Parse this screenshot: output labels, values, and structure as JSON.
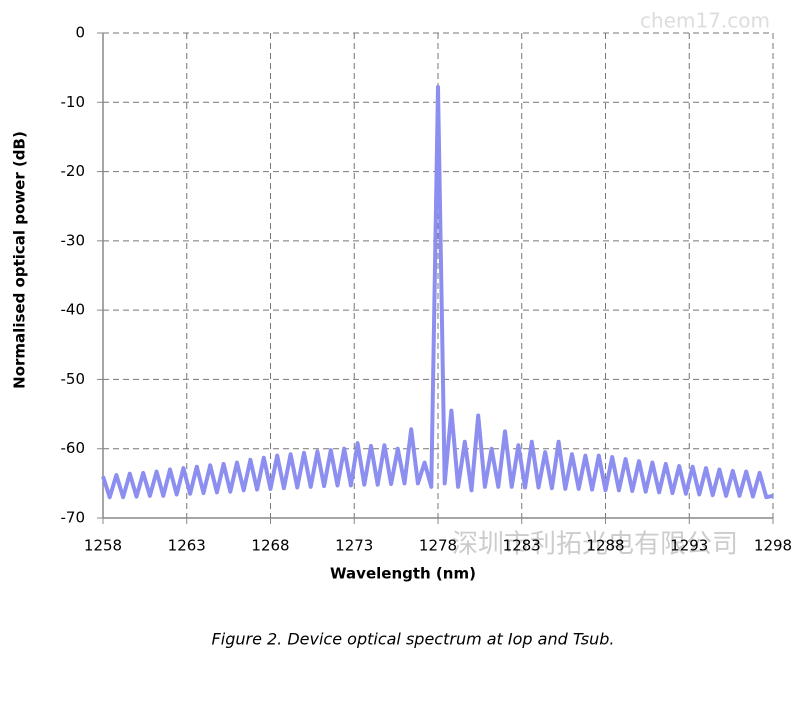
{
  "chart_data": {
    "type": "line",
    "x_label": "Wavelength (nm)",
    "y_label": "Normalised optical power  (dB)",
    "caption": "Figure 2. Device optical spectrum at Iop and Tsub.",
    "watermark": "chem17.com",
    "watermark_company": "深圳市利拓光电有限公司",
    "color": "#8c8ff0",
    "grid": true,
    "xlim": [
      1258,
      1298
    ],
    "ylim": [
      -70,
      0
    ],
    "xticks": [
      1258,
      1263,
      1268,
      1273,
      1278,
      1283,
      1288,
      1293,
      1298
    ],
    "yticks": [
      0,
      -10,
      -20,
      -30,
      -40,
      -50,
      -60,
      -70
    ],
    "x": [
      1258,
      1258.4,
      1258.8,
      1259.2,
      1259.6,
      1260,
      1260.4,
      1260.8,
      1261.2,
      1261.6,
      1262,
      1262.4,
      1262.8,
      1263.2,
      1263.6,
      1264,
      1264.4,
      1264.8,
      1265.2,
      1265.6,
      1266,
      1266.4,
      1266.8,
      1267.2,
      1267.6,
      1268,
      1268.4,
      1268.8,
      1269.2,
      1269.6,
      1270,
      1270.4,
      1270.8,
      1271.2,
      1271.6,
      1272,
      1272.4,
      1272.8,
      1273.2,
      1273.6,
      1274,
      1274.4,
      1274.8,
      1275.2,
      1275.6,
      1276,
      1276.4,
      1276.8,
      1277.2,
      1277.6,
      1278,
      1278.4,
      1278.8,
      1279.2,
      1279.6,
      1280,
      1280.4,
      1280.8,
      1281.2,
      1281.6,
      1282,
      1282.4,
      1282.8,
      1283.2,
      1283.6,
      1284,
      1284.4,
      1284.8,
      1285.2,
      1285.6,
      1286,
      1286.4,
      1286.8,
      1287.2,
      1287.6,
      1288,
      1288.4,
      1288.8,
      1289.2,
      1289.6,
      1290,
      1290.4,
      1290.8,
      1291.2,
      1291.6,
      1292,
      1292.4,
      1292.8,
      1293.2,
      1293.6,
      1294,
      1294.4,
      1294.8,
      1295.2,
      1295.6,
      1296,
      1296.4,
      1296.8,
      1297.2,
      1297.6,
      1298
    ],
    "values": [
      -64,
      -67,
      -63.8,
      -67,
      -63.6,
      -66.9,
      -63.5,
      -66.8,
      -63.3,
      -66.8,
      -63,
      -66.6,
      -62.8,
      -66.5,
      -62.6,
      -66.4,
      -62.4,
      -66.3,
      -62.2,
      -66.2,
      -62,
      -66,
      -61.6,
      -65.9,
      -61.3,
      -65.8,
      -61,
      -65.7,
      -60.8,
      -65.6,
      -60.6,
      -65.5,
      -60.4,
      -65.4,
      -60.2,
      -65.3,
      -60,
      -65.3,
      -59.2,
      -65.2,
      -59.6,
      -65.2,
      -59.5,
      -65.1,
      -60,
      -65,
      -57.2,
      -65,
      -62,
      -65.5,
      -7.8,
      -65,
      -54.5,
      -65.5,
      -59,
      -66,
      -55.2,
      -65.5,
      -60,
      -65.5,
      -57.5,
      -65.5,
      -59.5,
      -65.6,
      -59,
      -65.6,
      -60.5,
      -65.7,
      -59,
      -65.8,
      -60.8,
      -65.8,
      -61,
      -65.9,
      -61,
      -66,
      -61.2,
      -66,
      -61.5,
      -66.1,
      -61.8,
      -66.2,
      -62,
      -66.3,
      -62.2,
      -66.4,
      -62.5,
      -66.5,
      -62.6,
      -66.6,
      -62.8,
      -66.7,
      -63,
      -66.8,
      -63.2,
      -66.8,
      -63.3,
      -66.9,
      -63.5,
      -67,
      -66.8
    ]
  }
}
